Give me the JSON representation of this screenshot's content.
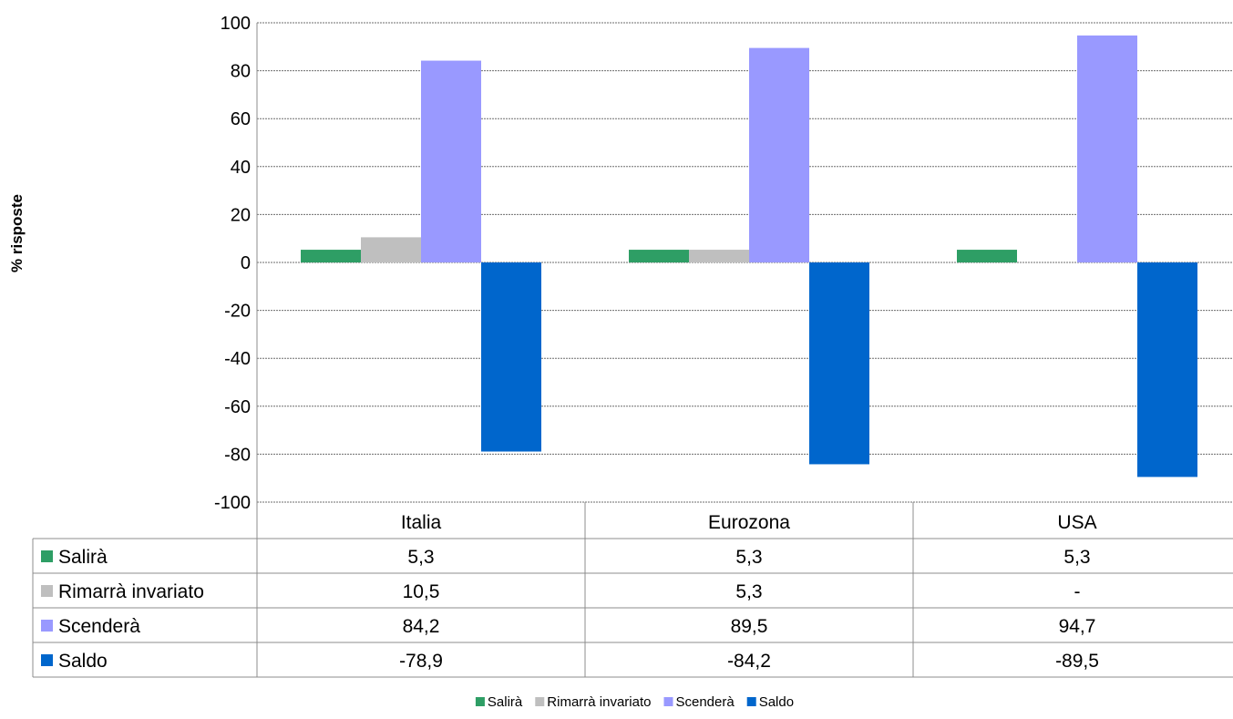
{
  "chart_data": {
    "type": "bar",
    "ylabel": "% risposte",
    "ylim": [
      -100,
      100
    ],
    "ytick_step": 20,
    "grid": true,
    "legend": "bottom",
    "categories": [
      "Italia",
      "Eurozona",
      "USA"
    ],
    "series": [
      {
        "name": "Salirà",
        "values": [
          5.3,
          5.3,
          5.3
        ],
        "labels": [
          "5,3",
          "5,3",
          "5,3"
        ],
        "color": "#2e9e65"
      },
      {
        "name": "Rimarrà invariato",
        "values": [
          10.5,
          5.3,
          null
        ],
        "labels": [
          "10,5",
          "5,3",
          "-"
        ],
        "color": "#bfbfbf"
      },
      {
        "name": "Scenderà",
        "values": [
          84.2,
          89.5,
          94.7
        ],
        "labels": [
          "84,2",
          "89,5",
          "94,7"
        ],
        "color": "#9999ff"
      },
      {
        "name": "Saldo",
        "values": [
          -78.9,
          -84.2,
          -89.5
        ],
        "labels": [
          "-78,9",
          "-84,2",
          "-89,5"
        ],
        "color": "#0066cc"
      }
    ]
  }
}
